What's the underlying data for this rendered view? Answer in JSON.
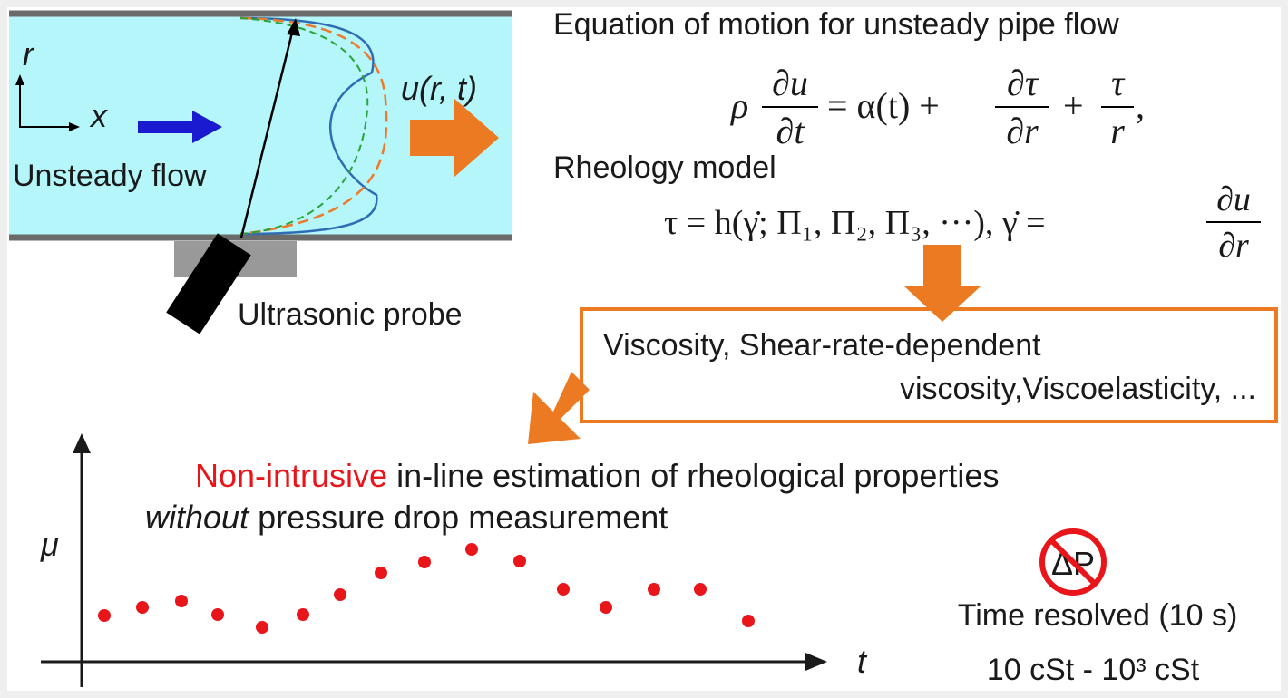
{
  "pipe": {
    "r_label": "r",
    "x_label": "x",
    "flow_label": "Unsteady flow",
    "velocity_label": "u(r, t)",
    "probe_label": "Ultrasonic probe"
  },
  "equation_of_motion": {
    "title": "Equation of motion for unsteady pipe flow",
    "rho": "ρ",
    "du": "∂u",
    "dt": "∂t",
    "middle": "= α(t) +",
    "dtau": "∂τ",
    "dr": "∂r",
    "plus": "+",
    "tau": "τ",
    "r": "r",
    "comma": ","
  },
  "rheology_model": {
    "title": "Rheology model",
    "equation": "τ = h(γ̇; Π₁, Π₂, Π₃, ···),  γ̇ =",
    "du": "∂u",
    "dr": "∂r"
  },
  "properties": {
    "line1": "Viscosity, Shear-rate-dependent",
    "line2": "viscosity,Viscoelasticity, ..."
  },
  "result": {
    "highlight": "Non-intrusive",
    "line1_rest": " in-line estimation of rheological properties",
    "emphasis": "without",
    "line2_rest": " pressure drop measurement"
  },
  "plot": {
    "y_label": "μ",
    "x_label": "t"
  },
  "notes": {
    "no_pressure": "ΔP",
    "time": "Time resolved (10 s)",
    "range": "10 cSt - 10³ cSt"
  }
}
